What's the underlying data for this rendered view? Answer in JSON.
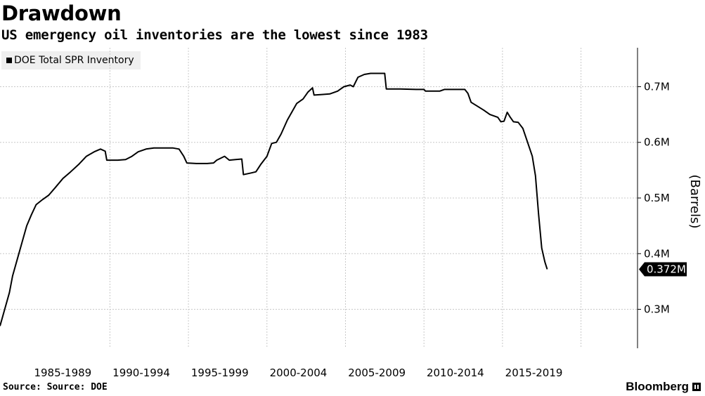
{
  "chart_data": {
    "type": "line",
    "title": "Drawdown",
    "subtitle": "US emergency oil inventories are the lowest since 1983",
    "ylabel": "(Barrels)",
    "xlabel": "",
    "ylim": [
      0.23,
      0.77
    ],
    "xlim": [
      1983.0,
      2023.6
    ],
    "grid": true,
    "legend_position": "top-left",
    "x_tick_labels": [
      {
        "label": "1985-1989",
        "at": 1987.0
      },
      {
        "label": "1990-1994",
        "at": 1992.0
      },
      {
        "label": "1995-1999",
        "at": 1997.0
      },
      {
        "label": "2000-2004",
        "at": 2002.0
      },
      {
        "label": "2005-2009",
        "at": 2007.0
      },
      {
        "label": "2010-2014",
        "at": 2012.0
      },
      {
        "label": "2015-2019",
        "at": 2017.0
      }
    ],
    "x_period_dividers": [
      1990.0,
      1995.0,
      2000.0,
      2005.0,
      2010.0,
      2015.0,
      2020.0
    ],
    "y_ticks": [
      {
        "value": 0.3,
        "label": "0.3M"
      },
      {
        "value": 0.4,
        "label": "0.4M"
      },
      {
        "value": 0.5,
        "label": "0.5M"
      },
      {
        "value": 0.6,
        "label": "0.6M"
      },
      {
        "value": 0.7,
        "label": "0.7M"
      }
    ],
    "last_value": {
      "value": 0.372,
      "label": "0.372M"
    },
    "series": [
      {
        "name": "DOE Total SPR Inventory",
        "color": "#000000",
        "points": [
          [
            1983.0,
            0.27
          ],
          [
            1983.3,
            0.3
          ],
          [
            1983.6,
            0.33
          ],
          [
            1983.8,
            0.36
          ],
          [
            1984.1,
            0.39
          ],
          [
            1984.4,
            0.42
          ],
          [
            1984.7,
            0.45
          ],
          [
            1985.0,
            0.47
          ],
          [
            1985.3,
            0.488
          ],
          [
            1985.7,
            0.497
          ],
          [
            1986.1,
            0.505
          ],
          [
            1986.5,
            0.518
          ],
          [
            1987.0,
            0.535
          ],
          [
            1987.5,
            0.547
          ],
          [
            1988.0,
            0.56
          ],
          [
            1988.5,
            0.575
          ],
          [
            1989.0,
            0.583
          ],
          [
            1989.4,
            0.588
          ],
          [
            1989.7,
            0.584
          ],
          [
            1989.8,
            0.568
          ],
          [
            1990.5,
            0.568
          ],
          [
            1991.0,
            0.569
          ],
          [
            1991.4,
            0.575
          ],
          [
            1991.8,
            0.583
          ],
          [
            1992.3,
            0.588
          ],
          [
            1992.8,
            0.59
          ],
          [
            1993.5,
            0.59
          ],
          [
            1994.0,
            0.59
          ],
          [
            1994.4,
            0.588
          ],
          [
            1994.7,
            0.575
          ],
          [
            1994.9,
            0.563
          ],
          [
            1995.5,
            0.562
          ],
          [
            1996.2,
            0.562
          ],
          [
            1996.6,
            0.563
          ],
          [
            1996.8,
            0.568
          ],
          [
            1997.3,
            0.575
          ],
          [
            1997.6,
            0.568
          ],
          [
            1998.0,
            0.569
          ],
          [
            1998.4,
            0.57
          ],
          [
            1998.5,
            0.542
          ],
          [
            1999.0,
            0.545
          ],
          [
            1999.3,
            0.547
          ],
          [
            1999.6,
            0.56
          ],
          [
            2000.0,
            0.575
          ],
          [
            2000.3,
            0.598
          ],
          [
            2000.6,
            0.6
          ],
          [
            2000.9,
            0.615
          ],
          [
            2001.3,
            0.64
          ],
          [
            2001.6,
            0.655
          ],
          [
            2001.9,
            0.67
          ],
          [
            2002.3,
            0.678
          ],
          [
            2002.6,
            0.69
          ],
          [
            2002.9,
            0.698
          ],
          [
            2003.0,
            0.685
          ],
          [
            2003.5,
            0.686
          ],
          [
            2004.0,
            0.687
          ],
          [
            2004.5,
            0.692
          ],
          [
            2004.9,
            0.7
          ],
          [
            2005.3,
            0.703
          ],
          [
            2005.5,
            0.7
          ],
          [
            2005.8,
            0.717
          ],
          [
            2006.2,
            0.722
          ],
          [
            2006.6,
            0.724
          ],
          [
            2007.0,
            0.724
          ],
          [
            2007.5,
            0.724
          ],
          [
            2007.6,
            0.696
          ],
          [
            2008.5,
            0.696
          ],
          [
            2009.5,
            0.695
          ],
          [
            2010.0,
            0.695
          ],
          [
            2010.1,
            0.692
          ],
          [
            2011.0,
            0.692
          ],
          [
            2011.3,
            0.695
          ],
          [
            2012.0,
            0.695
          ],
          [
            2012.6,
            0.695
          ],
          [
            2012.8,
            0.688
          ],
          [
            2013.0,
            0.672
          ],
          [
            2013.4,
            0.665
          ],
          [
            2013.8,
            0.658
          ],
          [
            2014.2,
            0.65
          ],
          [
            2014.7,
            0.645
          ],
          [
            2014.9,
            0.637
          ],
          [
            2015.1,
            0.638
          ],
          [
            2015.3,
            0.654
          ],
          [
            2015.5,
            0.645
          ],
          [
            2015.7,
            0.637
          ],
          [
            2016.0,
            0.636
          ],
          [
            2016.3,
            0.625
          ],
          [
            2016.6,
            0.6
          ],
          [
            2016.9,
            0.575
          ],
          [
            2017.1,
            0.54
          ],
          [
            2017.3,
            0.47
          ],
          [
            2017.5,
            0.41
          ],
          [
            2017.7,
            0.385
          ],
          [
            2017.85,
            0.372
          ]
        ]
      }
    ]
  },
  "source": "Source: Source: DOE",
  "brand": "Bloomberg"
}
